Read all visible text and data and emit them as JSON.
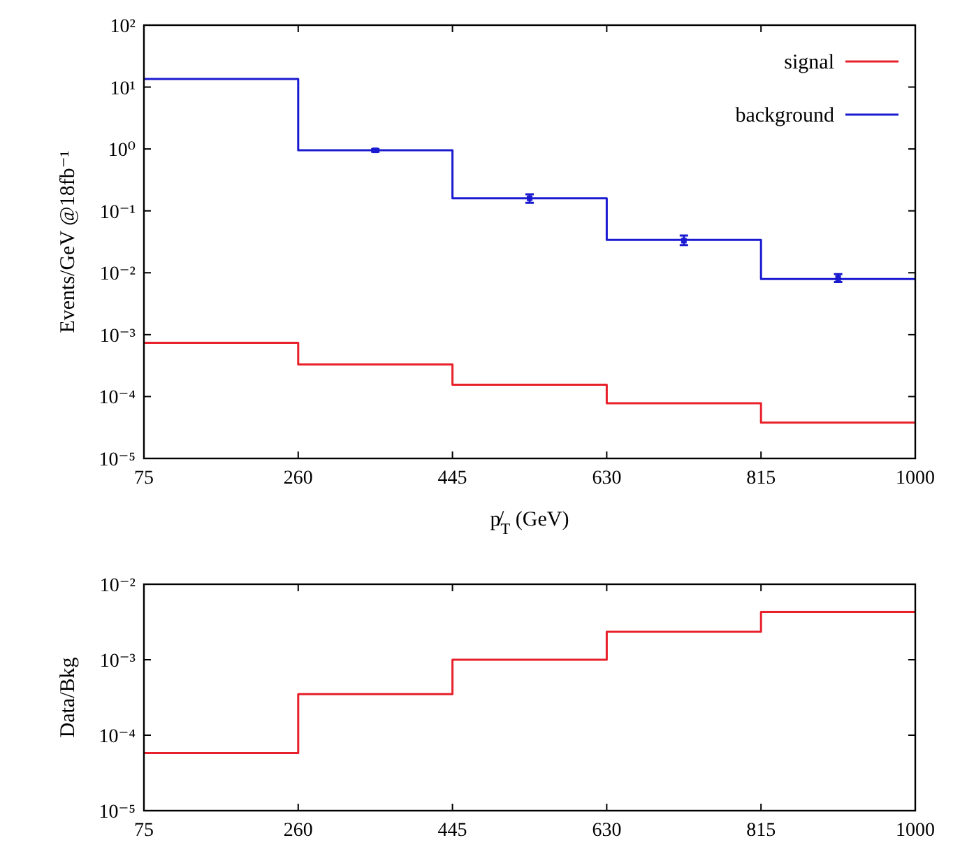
{
  "chart_data": [
    {
      "type": "step",
      "xlabel": "p̸$_{T}$ (GeV)",
      "ylabel": "Events/GeV @18fb⁻¹",
      "x": [
        75,
        260,
        445,
        630,
        815,
        1000
      ],
      "xlim": [
        75,
        1000
      ],
      "xticks": [
        75,
        260,
        445,
        630,
        815,
        1000
      ],
      "log": true,
      "ylim": [
        1e-05,
        100
      ],
      "yticks": [
        {
          "value": 1e-05,
          "label": "10⁻⁵"
        },
        {
          "value": 0.0001,
          "label": "10⁻⁴"
        },
        {
          "value": 0.001,
          "label": "10⁻³"
        },
        {
          "value": 0.01,
          "label": "10⁻²"
        },
        {
          "value": 0.1,
          "label": "10⁻¹"
        },
        {
          "value": 1,
          "label": "10⁰"
        },
        {
          "value": 10,
          "label": "10¹"
        },
        {
          "value": 100,
          "label": "10²"
        }
      ],
      "legend": "top right",
      "grid": false,
      "series": [
        {
          "name": "signal",
          "color": "#e8202a",
          "values": [
            0.00074,
            0.00033,
            0.000155,
            7.8e-05,
            3.8e-05,
            3.8e-05
          ]
        },
        {
          "name": "background",
          "color": "#1a1ad0",
          "values": [
            13.5,
            0.95,
            0.16,
            0.034,
            0.0079,
            0.0079
          ]
        },
        {
          "type": "scatter",
          "marker": "square",
          "color": "#1a1ad0",
          "x": [
            352.5,
            537.5,
            722.5,
            907.5
          ],
          "values": [
            0.95,
            0.16,
            0.033,
            0.0082
          ],
          "errors": [
            0.05,
            0.025,
            [
              0.028,
              0.04
            ],
            [
              0.0071,
              0.0095
            ]
          ]
        }
      ]
    },
    {
      "type": "step",
      "ylabel": "Data/Bkg",
      "x": [
        75,
        260,
        445,
        630,
        815,
        1000
      ],
      "xlim": [
        75,
        1000
      ],
      "xticks": [
        75,
        260,
        445,
        630,
        815,
        1000
      ],
      "log": true,
      "ylim": [
        1e-05,
        0.01
      ],
      "yticks": [
        {
          "value": 1e-05,
          "label": "10⁻⁵"
        },
        {
          "value": 0.0001,
          "label": "10⁻⁴"
        },
        {
          "value": 0.001,
          "label": "10⁻³"
        },
        {
          "value": 0.01,
          "label": "10⁻²"
        }
      ],
      "grid": false,
      "series": [
        {
          "color": "#e8202a",
          "values": [
            5.8e-05,
            0.00035,
            0.001,
            0.00235,
            0.0043,
            0.0043
          ]
        }
      ]
    }
  ]
}
